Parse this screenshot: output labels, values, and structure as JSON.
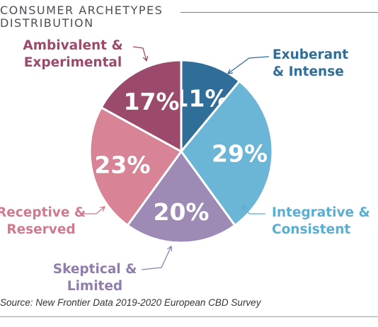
{
  "header": {
    "title_line1": "CONSUMER ARCHETYPES",
    "title_line2": "DISTRIBUTION"
  },
  "footer": {
    "source": "Source: New Frontier Data 2019-2020 European CBD Survey"
  },
  "chart_data": {
    "type": "pie",
    "title": "CONSUMER ARCHETYPES DISTRIBUTION",
    "legend": "none",
    "slices": [
      {
        "name": "Exuberant & Intense",
        "label_lines": [
          "Exuberant",
          "& Intense"
        ],
        "value": 11,
        "display": "11%",
        "color": "#2f6e99",
        "label_color": "#2f6e99"
      },
      {
        "name": "Integrative & Consistent",
        "label_lines": [
          "Integrative &",
          "Consistent"
        ],
        "value": 29,
        "display": "29%",
        "color": "#6bb5d6",
        "label_color": "#5aaed2"
      },
      {
        "name": "Skeptical & Limited",
        "label_lines": [
          "Skeptical &",
          "Limited"
        ],
        "value": 20,
        "display": "20%",
        "color": "#9d8ab5",
        "label_color": "#8f7eac"
      },
      {
        "name": "Receptive & Reserved",
        "label_lines": [
          "Receptive &",
          "Reserved"
        ],
        "value": 23,
        "display": "23%",
        "color": "#d88496",
        "label_color": "#d27a8d"
      },
      {
        "name": "Ambivalent & Experimental",
        "label_lines": [
          "Ambivalent &",
          "Experimental"
        ],
        "value": 17,
        "display": "17%",
        "color": "#9c4a6b",
        "label_color": "#9c4a6b"
      }
    ]
  }
}
